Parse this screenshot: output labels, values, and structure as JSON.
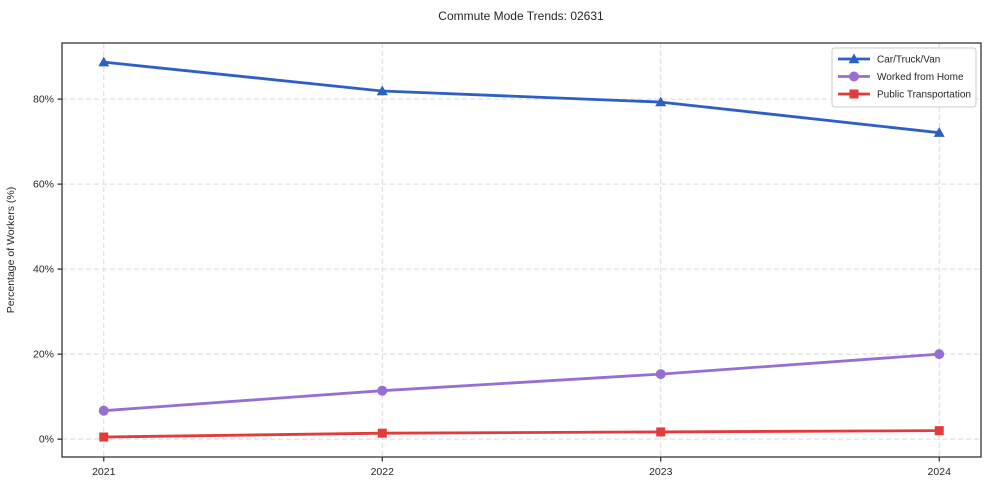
{
  "title": "Commute Mode Trends: 02631",
  "chart_data": {
    "type": "line",
    "title": "Commute Mode Trends: 02631",
    "xlabel": "",
    "ylabel": "Percentage of Workers (%)",
    "categories": [
      "2021",
      "2022",
      "2023",
      "2024"
    ],
    "x": [
      2021,
      2022,
      2023,
      2024
    ],
    "series": [
      {
        "name": "Car/Truck/Van",
        "marker": "triangle",
        "color": "#2d5fc4",
        "values": [
          88.7,
          81.9,
          79.3,
          72.1
        ]
      },
      {
        "name": "Worked from Home",
        "marker": "circle",
        "color": "#976ed4",
        "values": [
          6.7,
          11.4,
          15.3,
          20.0
        ]
      },
      {
        "name": "Public Transportation",
        "marker": "square",
        "color": "#e23b3b",
        "values": [
          0.5,
          1.4,
          1.7,
          2.0
        ]
      }
    ],
    "xlim": [
      2020.85,
      2024.15
    ],
    "ylim": [
      -4.2,
      93.2
    ],
    "yticks": [
      0,
      20,
      40,
      60,
      80
    ],
    "ytick_labels": [
      "0%",
      "20%",
      "40%",
      "60%",
      "80%"
    ],
    "grid": true,
    "grid_style": "dashed",
    "legend_position": "upper right",
    "colors": {
      "grid": "#d9d9d9",
      "axis": "#262626",
      "text": "#262626",
      "background": "#ffffff",
      "legend_border": "#cccccc",
      "legend_background": "#ffffff"
    }
  }
}
